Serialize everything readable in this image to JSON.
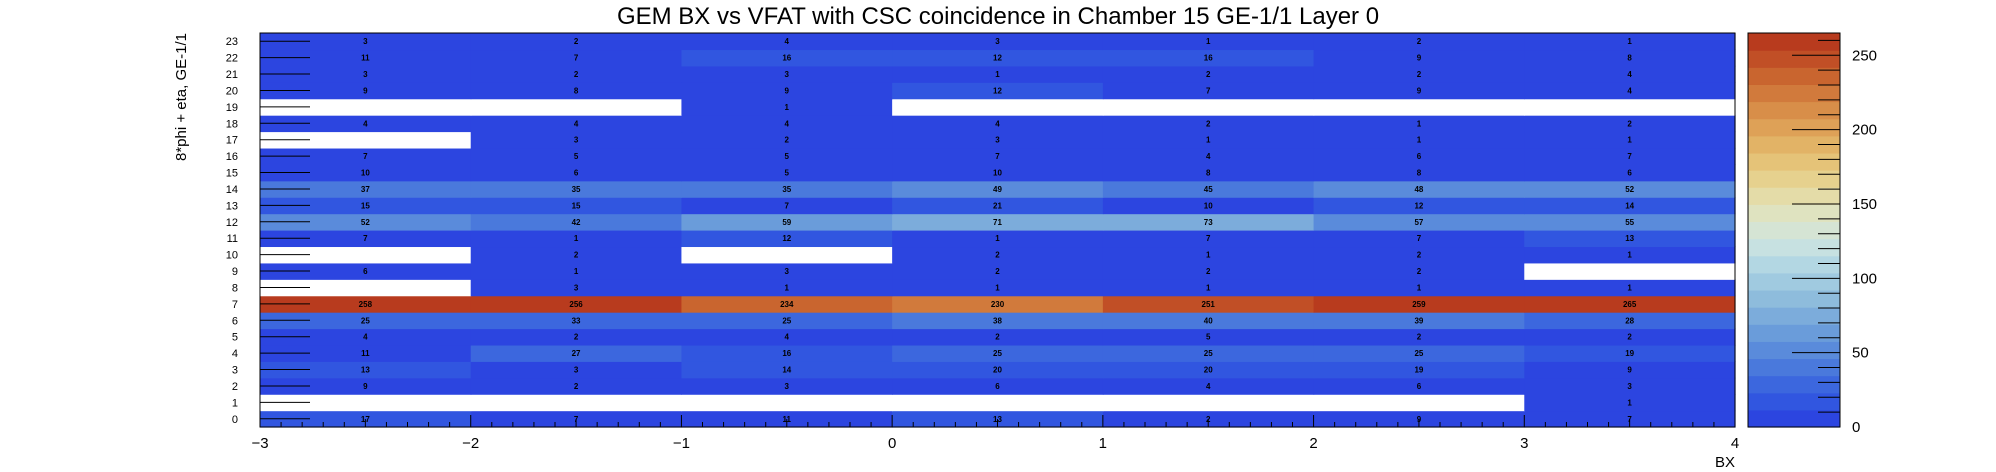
{
  "chart_data": {
    "type": "heatmap",
    "title": "GEM BX vs VFAT with CSC coincidence in Chamber 15 GE-1/1 Layer 0",
    "xlabel": "BX",
    "ylabel": "8*phi + eta, GE-1/1",
    "x_bins": [
      "-3..-2",
      "-2..-1",
      "-1..0",
      "0..1",
      "1..2",
      "2..3",
      "3..4"
    ],
    "x_ticks": [
      "−3",
      "−2",
      "−1",
      "0",
      "1",
      "2",
      "3",
      "4"
    ],
    "xlim": [
      -3,
      4
    ],
    "ylim": [
      0,
      24
    ],
    "y_bins": [
      "0",
      "1",
      "2",
      "3",
      "4",
      "5",
      "6",
      "7",
      "8",
      "9",
      "10",
      "11",
      "12",
      "13",
      "14",
      "15",
      "16",
      "17",
      "18",
      "19",
      "20",
      "21",
      "22",
      "23"
    ],
    "zlim": [
      0,
      265
    ],
    "colorbar_ticks": [
      "0",
      "50",
      "100",
      "150",
      "200",
      "250"
    ],
    "values": [
      [
        17,
        7,
        11,
        13,
        2,
        9,
        7
      ],
      [
        null,
        null,
        null,
        null,
        null,
        null,
        1
      ],
      [
        9,
        2,
        3,
        6,
        4,
        6,
        3
      ],
      [
        13,
        3,
        14,
        20,
        20,
        19,
        9
      ],
      [
        11,
        27,
        16,
        25,
        25,
        25,
        19
      ],
      [
        4,
        2,
        4,
        2,
        5,
        2,
        2
      ],
      [
        25,
        33,
        25,
        38,
        40,
        39,
        28
      ],
      [
        258,
        256,
        234,
        230,
        251,
        259,
        265
      ],
      [
        null,
        3,
        1,
        1,
        1,
        1,
        1
      ],
      [
        6,
        1,
        3,
        2,
        2,
        2,
        null
      ],
      [
        null,
        2,
        null,
        2,
        1,
        2,
        1
      ],
      [
        7,
        1,
        12,
        1,
        7,
        7,
        13
      ],
      [
        52,
        42,
        59,
        71,
        73,
        57,
        55
      ],
      [
        15,
        15,
        7,
        21,
        10,
        12,
        14
      ],
      [
        37,
        35,
        35,
        49,
        45,
        48,
        52
      ],
      [
        10,
        6,
        5,
        10,
        8,
        8,
        6
      ],
      [
        7,
        5,
        5,
        7,
        4,
        6,
        7
      ],
      [
        null,
        3,
        2,
        3,
        1,
        1,
        1
      ],
      [
        4,
        4,
        4,
        4,
        2,
        1,
        2
      ],
      [
        null,
        null,
        1,
        null,
        null,
        null,
        null
      ],
      [
        9,
        8,
        9,
        12,
        7,
        9,
        4
      ],
      [
        3,
        2,
        3,
        1,
        2,
        2,
        4
      ],
      [
        11,
        7,
        16,
        12,
        16,
        9,
        8
      ],
      [
        3,
        2,
        4,
        3,
        1,
        2,
        1
      ]
    ],
    "palette": [
      "#2c45e0",
      "#3156e0",
      "#3c67de",
      "#4a79dc",
      "#5a8bdb",
      "#6a9cda",
      "#7cacdb",
      "#8ebcdc",
      "#a0cae0",
      "#b3d7e3",
      "#c7e1e1",
      "#d5e4d4",
      "#dfe3c0",
      "#e4dca8",
      "#e6d18e",
      "#e5c378",
      "#e2b366",
      "#dea157",
      "#d88e49",
      "#d17a3c",
      "#c9652f",
      "#c14f26",
      "#b83b1e"
    ],
    "background_color": "#ffffff"
  }
}
